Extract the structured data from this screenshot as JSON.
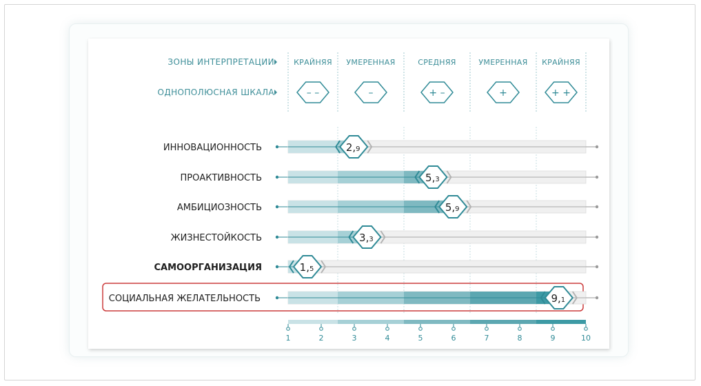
{
  "header": {
    "zones_label": "ЗОНЫ ИНТЕРПРЕТАЦИИ",
    "scale_label": "ОДНОПОЛЮСНАЯ ШКАЛА",
    "arrow_icon": "caret-right-icon"
  },
  "zones": [
    {
      "label": "КРАЙНЯЯ",
      "symbol": "– –",
      "from": 1,
      "to": 2.5
    },
    {
      "label": "УМЕРЕННАЯ",
      "symbol": "–",
      "from": 2.5,
      "to": 4.5
    },
    {
      "label": "СРЕДНЯЯ",
      "symbol": "+ –",
      "from": 4.5,
      "to": 6.5
    },
    {
      "label": "УМЕРЕННАЯ",
      "symbol": "+",
      "from": 6.5,
      "to": 8.5
    },
    {
      "label": "КРАЙНЯЯ",
      "symbol": "+ +",
      "from": 8.5,
      "to": 10
    }
  ],
  "colors": {
    "accent": "#2f8a96",
    "band1": "#c9e2e6",
    "band2": "#a6d0d6",
    "band3": "#7fb9c1",
    "band4": "#5ca7b1",
    "band5": "#3d9aa5",
    "track": "#f0f0f0",
    "highlight_border": "#cc3b3b"
  },
  "chart_data": {
    "type": "bar",
    "orientation": "horizontal",
    "xlim": [
      1,
      10
    ],
    "ticks": [
      1,
      2,
      3,
      4,
      5,
      6,
      7,
      8,
      9,
      10
    ],
    "categories": [
      "ИННОВАЦИОННОСТЬ",
      "ПРОАКТИВНОСТЬ",
      "АМБИЦИОЗНОСТЬ",
      "ЖИЗНЕСТОЙКОСТЬ",
      "САМООРГАНИЗАЦИЯ",
      "СОЦИАЛЬНАЯ ЖЕЛАТЕЛЬНОСТЬ"
    ],
    "values": [
      2.9,
      5.3,
      5.9,
      3.3,
      1.5,
      9.1
    ],
    "value_labels": [
      {
        "int": "2,",
        "dec": "9"
      },
      {
        "int": "5,",
        "dec": "3"
      },
      {
        "int": "5,",
        "dec": "9"
      },
      {
        "int": "3,",
        "dec": "3"
      },
      {
        "int": "1,",
        "dec": "5"
      },
      {
        "int": "9,",
        "dec": "1"
      }
    ],
    "bold_category": "САМООРГАНИЗАЦИЯ",
    "highlighted_category": "СОЦИАЛЬНАЯ ЖЕЛАТЕЛЬНОСТЬ"
  }
}
